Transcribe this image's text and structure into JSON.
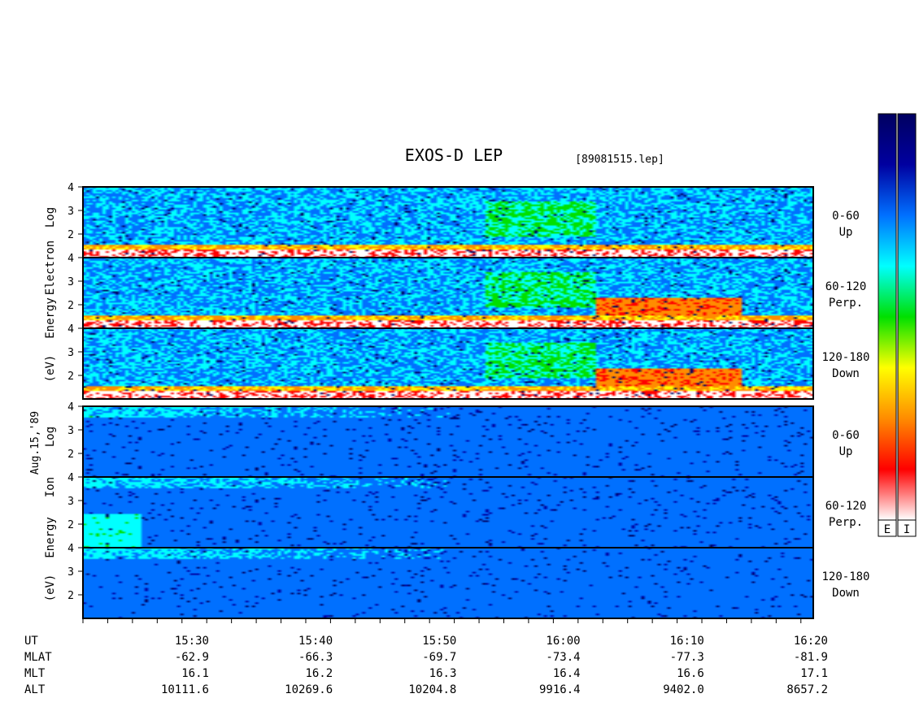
{
  "title": "EXOS-D LEP",
  "file_label": "[89081515.lep]",
  "date_label": "Aug.15,'89",
  "colorbar_labels": [
    "E",
    "I"
  ],
  "colors": {
    "scale": [
      "#ffffff",
      "#ff0000",
      "#ff8c00",
      "#ffff00",
      "#00e000",
      "#00ffff",
      "#0070ff",
      "#0000a0",
      "#000060"
    ]
  },
  "chart_data": {
    "type": "heatmap",
    "ylim": [
      1,
      4
    ],
    "yticks": [
      "4",
      "3",
      "2"
    ],
    "groups": [
      {
        "name": "electron",
        "ylabel_lines": [
          "Log",
          "Electron",
          "Energy",
          "(eV)"
        ],
        "panels": [
          {
            "label_lines": [
              "0-60",
              "Up"
            ]
          },
          {
            "label_lines": [
              "60-120",
              "Perp."
            ]
          },
          {
            "label_lines": [
              "120-180",
              "Down"
            ]
          }
        ]
      },
      {
        "name": "ion",
        "ylabel_lines": [
          "Log",
          "Ion",
          "Energy",
          "(eV)"
        ],
        "panels": [
          {
            "label_lines": [
              "0-60",
              "Up"
            ]
          },
          {
            "label_lines": [
              "60-120",
              "Perp."
            ]
          },
          {
            "label_lines": [
              "120-180",
              "Down"
            ]
          }
        ]
      }
    ],
    "x_range_minutes": [
      921,
      980
    ],
    "x_tick_minutes": [
      930,
      940,
      950,
      960,
      970,
      980
    ],
    "footer": [
      {
        "label": "UT",
        "values": [
          "15:30",
          "15:40",
          "15:50",
          "16:00",
          "16:10",
          "16:20"
        ]
      },
      {
        "label": "MLAT",
        "values": [
          "-62.9",
          "-66.3",
          "-69.7",
          "-73.4",
          "-77.3",
          "-81.9"
        ]
      },
      {
        "label": "MLT",
        "values": [
          "16.1",
          "16.2",
          "16.3",
          "16.4",
          "16.6",
          "17.1"
        ]
      },
      {
        "label": "ALT",
        "values": [
          "10111.6",
          "10269.6",
          "10204.8",
          "9916.4",
          "9402.0",
          "8657.2"
        ]
      }
    ]
  }
}
